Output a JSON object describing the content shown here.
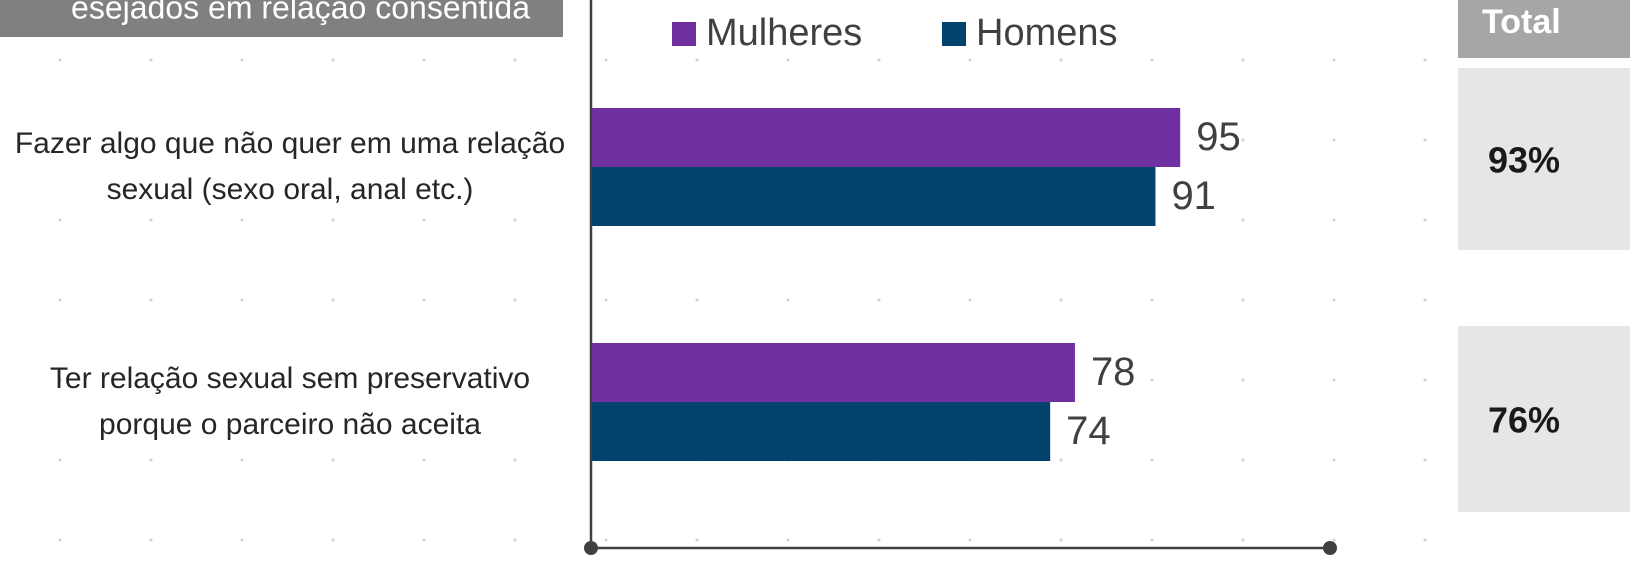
{
  "header": "esejados em relação consentida",
  "chart_data": {
    "type": "bar",
    "orientation": "horizontal",
    "categories": [
      "Fazer algo que não quer em uma relação sexual (sexo oral, anal etc.)",
      "Ter relação sexual sem preservativo porque o parceiro não aceita"
    ],
    "series": [
      {
        "name": "Mulheres",
        "color": "#7030a0",
        "values": [
          95,
          78
        ]
      },
      {
        "name": "Homens",
        "color": "#03426c",
        "values": [
          91,
          74
        ]
      }
    ],
    "xlim": [
      0,
      120
    ]
  },
  "total": {
    "title": "Total",
    "values": [
      93,
      76
    ],
    "value_labels": [
      "93%",
      "76%"
    ]
  }
}
